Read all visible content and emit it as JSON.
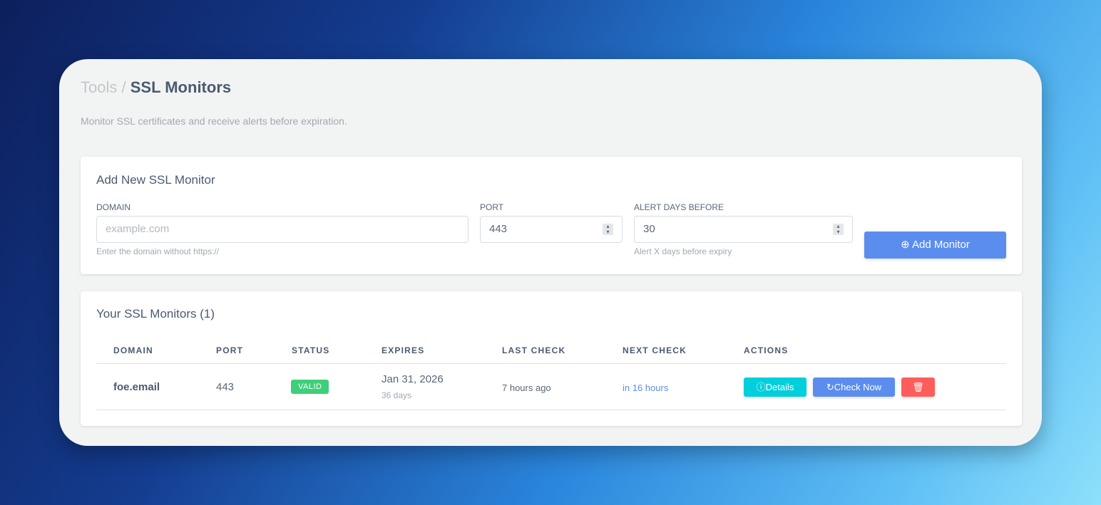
{
  "breadcrumb": {
    "parent": "Tools",
    "separator": "/",
    "current": "SSL Monitors"
  },
  "subtitle": "Monitor SSL certificates and receive alerts before expiration.",
  "form": {
    "title": "Add New SSL Monitor",
    "domain": {
      "label": "DOMAIN",
      "placeholder": "example.com",
      "hint": "Enter the domain without https://"
    },
    "port": {
      "label": "PORT",
      "value": "443"
    },
    "alert": {
      "label": "ALERT DAYS BEFORE",
      "value": "30",
      "hint": "Alert X days before expiry"
    },
    "submit": "Add Monitor"
  },
  "monitors": {
    "title": "Your SSL Monitors (1)",
    "columns": [
      "DOMAIN",
      "PORT",
      "STATUS",
      "EXPIRES",
      "LAST CHECK",
      "NEXT CHECK",
      "ACTIONS"
    ],
    "rows": [
      {
        "domain": "foe.email",
        "port": "443",
        "status": "VALID",
        "expires": "Jan 31, 2026",
        "days": "36 days",
        "last_check": "7 hours ago",
        "next_check": "in 16 hours",
        "details": "Details",
        "check_now": "Check Now"
      }
    ]
  },
  "colors": {
    "valid": "#3ecf7a",
    "details": "#00cfdc",
    "check": "#5b8def",
    "delete": "#ff5c5c"
  }
}
